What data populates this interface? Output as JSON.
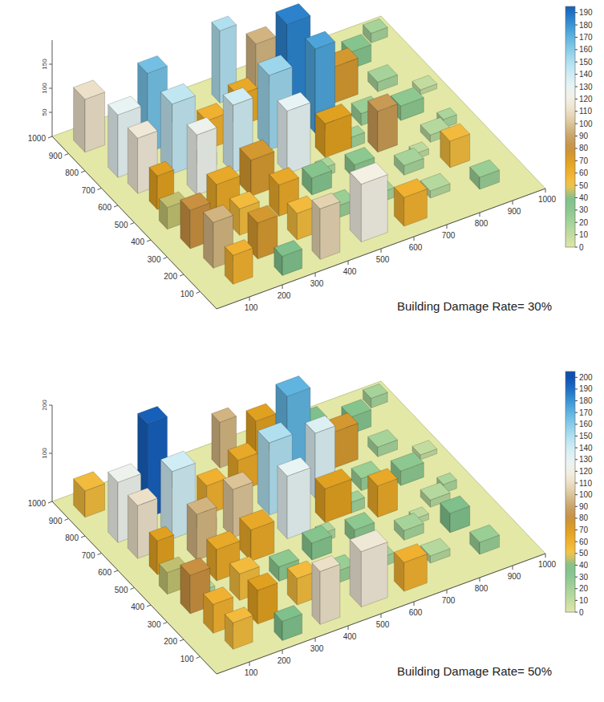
{
  "chart_data": [
    {
      "type": "bar3d",
      "annotation": "Building Damage Rate= 30%",
      "xlim": [
        0,
        1000
      ],
      "xticks": [
        100,
        200,
        300,
        400,
        500,
        600,
        700,
        800,
        900,
        1000
      ],
      "ylim": [
        0,
        1000
      ],
      "yticks": [
        100,
        200,
        300,
        400,
        500,
        600,
        700,
        800,
        900,
        1000
      ],
      "zlim": [
        0,
        200
      ],
      "zticks": [
        50,
        100,
        150
      ],
      "colorbar": {
        "range": [
          0,
          195
        ],
        "ticks": [
          0,
          10,
          20,
          30,
          40,
          50,
          60,
          70,
          80,
          90,
          100,
          110,
          120,
          130,
          140,
          150,
          160,
          170,
          180,
          190
        ]
      },
      "buildings": [
        {
          "x": 40,
          "y": 880,
          "w": 60,
          "d": 70,
          "h": 110
        },
        {
          "x": 60,
          "y": 720,
          "w": 70,
          "d": 60,
          "h": 130
        },
        {
          "x": 70,
          "y": 620,
          "w": 60,
          "d": 60,
          "h": 115
        },
        {
          "x": 80,
          "y": 520,
          "w": 50,
          "d": 50,
          "h": 70
        },
        {
          "x": 60,
          "y": 420,
          "w": 60,
          "d": 50,
          "h": 45
        },
        {
          "x": 70,
          "y": 300,
          "w": 60,
          "d": 60,
          "h": 80
        },
        {
          "x": 80,
          "y": 180,
          "w": 60,
          "d": 60,
          "h": 95
        },
        {
          "x": 90,
          "y": 80,
          "w": 60,
          "d": 50,
          "h": 60
        },
        {
          "x": 180,
          "y": 780,
          "w": 60,
          "d": 60,
          "h": 165
        },
        {
          "x": 190,
          "y": 650,
          "w": 70,
          "d": 70,
          "h": 145
        },
        {
          "x": 200,
          "y": 520,
          "w": 60,
          "d": 60,
          "h": 125
        },
        {
          "x": 200,
          "y": 400,
          "w": 70,
          "d": 60,
          "h": 65
        },
        {
          "x": 210,
          "y": 280,
          "w": 60,
          "d": 60,
          "h": 55
        },
        {
          "x": 200,
          "y": 150,
          "w": 60,
          "d": 60,
          "h": 75
        },
        {
          "x": 220,
          "y": 40,
          "w": 60,
          "d": 50,
          "h": 40
        },
        {
          "x": 300,
          "y": 850,
          "w": 50,
          "d": 50,
          "h": 35
        },
        {
          "x": 320,
          "y": 700,
          "w": 60,
          "d": 60,
          "h": 60
        },
        {
          "x": 330,
          "y": 560,
          "w": 60,
          "d": 60,
          "h": 140
        },
        {
          "x": 320,
          "y": 430,
          "w": 70,
          "d": 70,
          "h": 75
        },
        {
          "x": 340,
          "y": 300,
          "w": 60,
          "d": 60,
          "h": 65
        },
        {
          "x": 330,
          "y": 170,
          "w": 60,
          "d": 60,
          "h": 55
        },
        {
          "x": 340,
          "y": 50,
          "w": 60,
          "d": 50,
          "h": 105
        },
        {
          "x": 450,
          "y": 880,
          "w": 50,
          "d": 50,
          "h": 150
        },
        {
          "x": 440,
          "y": 750,
          "w": 60,
          "d": 60,
          "h": 65
        },
        {
          "x": 460,
          "y": 600,
          "w": 70,
          "d": 70,
          "h": 155
        },
        {
          "x": 450,
          "y": 470,
          "w": 70,
          "d": 60,
          "h": 130
        },
        {
          "x": 460,
          "y": 340,
          "w": 60,
          "d": 60,
          "h": 35
        },
        {
          "x": 450,
          "y": 200,
          "w": 70,
          "d": 60,
          "h": 25
        },
        {
          "x": 470,
          "y": 60,
          "w": 80,
          "d": 70,
          "h": 120
        },
        {
          "x": 560,
          "y": 880,
          "w": 60,
          "d": 60,
          "h": 95
        },
        {
          "x": 580,
          "y": 730,
          "w": 70,
          "d": 70,
          "h": 185
        },
        {
          "x": 600,
          "y": 600,
          "w": 60,
          "d": 60,
          "h": 175
        },
        {
          "x": 570,
          "y": 480,
          "w": 80,
          "d": 60,
          "h": 70
        },
        {
          "x": 590,
          "y": 340,
          "w": 60,
          "d": 60,
          "h": 30
        },
        {
          "x": 580,
          "y": 200,
          "w": 60,
          "d": 60,
          "h": 20
        },
        {
          "x": 600,
          "y": 60,
          "w": 70,
          "d": 60,
          "h": 60
        },
        {
          "x": 700,
          "y": 850,
          "w": 60,
          "d": 60,
          "h": 40
        },
        {
          "x": 700,
          "y": 700,
          "w": 80,
          "d": 60,
          "h": 75
        },
        {
          "x": 720,
          "y": 560,
          "w": 60,
          "d": 60,
          "h": 25
        },
        {
          "x": 700,
          "y": 420,
          "w": 60,
          "d": 60,
          "h": 85
        },
        {
          "x": 710,
          "y": 280,
          "w": 60,
          "d": 60,
          "h": 20
        },
        {
          "x": 720,
          "y": 140,
          "w": 60,
          "d": 60,
          "h": 15
        },
        {
          "x": 820,
          "y": 820,
          "w": 60,
          "d": 60,
          "h": 35
        },
        {
          "x": 830,
          "y": 680,
          "w": 60,
          "d": 60,
          "h": 20
        },
        {
          "x": 820,
          "y": 520,
          "w": 70,
          "d": 60,
          "h": 30
        },
        {
          "x": 840,
          "y": 380,
          "w": 60,
          "d": 60,
          "h": 15
        },
        {
          "x": 830,
          "y": 240,
          "w": 60,
          "d": 60,
          "h": 55
        },
        {
          "x": 850,
          "y": 100,
          "w": 60,
          "d": 60,
          "h": 25
        },
        {
          "x": 920,
          "y": 900,
          "w": 50,
          "d": 50,
          "h": 20
        },
        {
          "x": 920,
          "y": 600,
          "w": 50,
          "d": 50,
          "h": 10
        },
        {
          "x": 130,
          "y": 350,
          "w": 40,
          "d": 40,
          "h": 15
        },
        {
          "x": 270,
          "y": 620,
          "w": 40,
          "d": 40,
          "h": 25
        },
        {
          "x": 390,
          "y": 250,
          "w": 40,
          "d": 40,
          "h": 12
        },
        {
          "x": 520,
          "y": 400,
          "w": 40,
          "d": 40,
          "h": 18
        },
        {
          "x": 650,
          "y": 480,
          "w": 40,
          "d": 40,
          "h": 22
        },
        {
          "x": 770,
          "y": 330,
          "w": 40,
          "d": 40,
          "h": 12
        },
        {
          "x": 900,
          "y": 420,
          "w": 40,
          "d": 40,
          "h": 18
        },
        {
          "x": 650,
          "y": 120,
          "w": 40,
          "d": 40,
          "h": 10
        }
      ]
    },
    {
      "type": "bar3d",
      "annotation": "Building Damage Rate= 50%",
      "xlim": [
        0,
        1000
      ],
      "xticks": [
        100,
        200,
        300,
        400,
        500,
        600,
        700,
        800,
        900,
        1000
      ],
      "ylim": [
        0,
        1000
      ],
      "yticks": [
        100,
        200,
        300,
        400,
        500,
        600,
        700,
        800,
        900,
        1000
      ],
      "zlim": [
        0,
        200
      ],
      "zticks": [
        100,
        200
      ],
      "colorbar": {
        "range": [
          0,
          205
        ],
        "ticks": [
          0,
          10,
          20,
          30,
          40,
          50,
          60,
          70,
          80,
          90,
          100,
          110,
          120,
          130,
          140,
          150,
          160,
          170,
          180,
          190,
          200
        ]
      },
      "buildings": [
        {
          "x": 40,
          "y": 880,
          "w": 60,
          "d": 70,
          "h": 55
        },
        {
          "x": 60,
          "y": 720,
          "w": 70,
          "d": 60,
          "h": 125
        },
        {
          "x": 70,
          "y": 620,
          "w": 60,
          "d": 60,
          "h": 110
        },
        {
          "x": 80,
          "y": 520,
          "w": 50,
          "d": 50,
          "h": 70
        },
        {
          "x": 60,
          "y": 420,
          "w": 60,
          "d": 50,
          "h": 45
        },
        {
          "x": 70,
          "y": 300,
          "w": 60,
          "d": 60,
          "h": 80
        },
        {
          "x": 80,
          "y": 180,
          "w": 60,
          "d": 60,
          "h": 60
        },
        {
          "x": 90,
          "y": 80,
          "w": 60,
          "d": 50,
          "h": 55
        },
        {
          "x": 180,
          "y": 780,
          "w": 60,
          "d": 60,
          "h": 195
        },
        {
          "x": 190,
          "y": 650,
          "w": 70,
          "d": 70,
          "h": 140
        },
        {
          "x": 200,
          "y": 520,
          "w": 60,
          "d": 60,
          "h": 95
        },
        {
          "x": 200,
          "y": 400,
          "w": 70,
          "d": 60,
          "h": 65
        },
        {
          "x": 210,
          "y": 280,
          "w": 60,
          "d": 60,
          "h": 55
        },
        {
          "x": 200,
          "y": 150,
          "w": 60,
          "d": 60,
          "h": 70
        },
        {
          "x": 220,
          "y": 40,
          "w": 60,
          "d": 50,
          "h": 40
        },
        {
          "x": 300,
          "y": 850,
          "w": 50,
          "d": 50,
          "h": 35
        },
        {
          "x": 320,
          "y": 700,
          "w": 60,
          "d": 60,
          "h": 60
        },
        {
          "x": 330,
          "y": 560,
          "w": 60,
          "d": 60,
          "h": 100
        },
        {
          "x": 320,
          "y": 430,
          "w": 70,
          "d": 70,
          "h": 65
        },
        {
          "x": 340,
          "y": 300,
          "w": 60,
          "d": 60,
          "h": 30
        },
        {
          "x": 330,
          "y": 170,
          "w": 60,
          "d": 60,
          "h": 55
        },
        {
          "x": 340,
          "y": 50,
          "w": 60,
          "d": 50,
          "h": 110
        },
        {
          "x": 450,
          "y": 880,
          "w": 50,
          "d": 50,
          "h": 95
        },
        {
          "x": 440,
          "y": 750,
          "w": 60,
          "d": 60,
          "h": 65
        },
        {
          "x": 460,
          "y": 600,
          "w": 70,
          "d": 70,
          "h": 150
        },
        {
          "x": 450,
          "y": 470,
          "w": 70,
          "d": 60,
          "h": 130
        },
        {
          "x": 460,
          "y": 340,
          "w": 60,
          "d": 60,
          "h": 35
        },
        {
          "x": 450,
          "y": 200,
          "w": 70,
          "d": 60,
          "h": 25
        },
        {
          "x": 470,
          "y": 60,
          "w": 80,
          "d": 70,
          "h": 115
        },
        {
          "x": 560,
          "y": 880,
          "w": 60,
          "d": 60,
          "h": 70
        },
        {
          "x": 580,
          "y": 730,
          "w": 70,
          "d": 70,
          "h": 170
        },
        {
          "x": 600,
          "y": 600,
          "w": 60,
          "d": 60,
          "h": 135
        },
        {
          "x": 570,
          "y": 480,
          "w": 80,
          "d": 60,
          "h": 70
        },
        {
          "x": 590,
          "y": 340,
          "w": 60,
          "d": 60,
          "h": 30
        },
        {
          "x": 580,
          "y": 200,
          "w": 60,
          "d": 60,
          "h": 20
        },
        {
          "x": 600,
          "y": 60,
          "w": 70,
          "d": 60,
          "h": 60
        },
        {
          "x": 700,
          "y": 850,
          "w": 60,
          "d": 60,
          "h": 40
        },
        {
          "x": 700,
          "y": 700,
          "w": 80,
          "d": 60,
          "h": 75
        },
        {
          "x": 720,
          "y": 560,
          "w": 60,
          "d": 60,
          "h": 25
        },
        {
          "x": 700,
          "y": 420,
          "w": 60,
          "d": 60,
          "h": 65
        },
        {
          "x": 710,
          "y": 280,
          "w": 60,
          "d": 60,
          "h": 20
        },
        {
          "x": 720,
          "y": 140,
          "w": 60,
          "d": 60,
          "h": 15
        },
        {
          "x": 820,
          "y": 820,
          "w": 60,
          "d": 60,
          "h": 35
        },
        {
          "x": 830,
          "y": 680,
          "w": 60,
          "d": 60,
          "h": 20
        },
        {
          "x": 820,
          "y": 520,
          "w": 70,
          "d": 60,
          "h": 30
        },
        {
          "x": 840,
          "y": 380,
          "w": 60,
          "d": 60,
          "h": 15
        },
        {
          "x": 830,
          "y": 240,
          "w": 60,
          "d": 60,
          "h": 40
        },
        {
          "x": 850,
          "y": 100,
          "w": 60,
          "d": 60,
          "h": 25
        },
        {
          "x": 920,
          "y": 900,
          "w": 50,
          "d": 50,
          "h": 20
        },
        {
          "x": 920,
          "y": 600,
          "w": 50,
          "d": 50,
          "h": 10
        },
        {
          "x": 130,
          "y": 350,
          "w": 40,
          "d": 40,
          "h": 15
        },
        {
          "x": 270,
          "y": 620,
          "w": 40,
          "d": 40,
          "h": 25
        },
        {
          "x": 390,
          "y": 250,
          "w": 40,
          "d": 40,
          "h": 12
        },
        {
          "x": 520,
          "y": 400,
          "w": 40,
          "d": 40,
          "h": 18
        },
        {
          "x": 650,
          "y": 480,
          "w": 40,
          "d": 40,
          "h": 22
        },
        {
          "x": 770,
          "y": 330,
          "w": 40,
          "d": 40,
          "h": 12
        },
        {
          "x": 900,
          "y": 420,
          "w": 40,
          "d": 40,
          "h": 18
        },
        {
          "x": 650,
          "y": 120,
          "w": 40,
          "d": 40,
          "h": 10
        }
      ]
    }
  ]
}
